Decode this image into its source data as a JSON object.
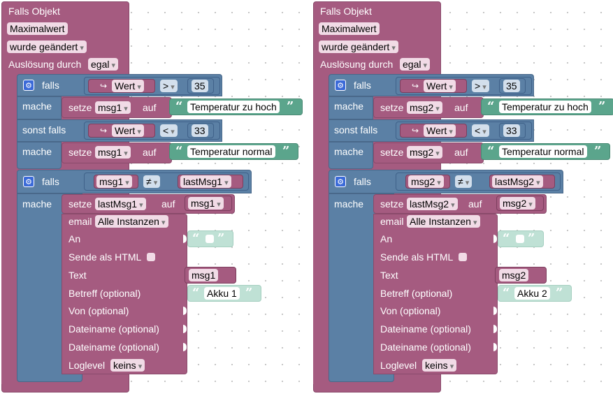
{
  "stacks": [
    {
      "trigger": {
        "title": "Falls Objekt",
        "object": "Maximalwert",
        "event": "wurde geändert",
        "trigger_label": "Auslösung durch",
        "trigger_value": "egal"
      },
      "if1": {
        "falls": "falls",
        "var": "Wert",
        "op": ">",
        "num": "35",
        "mache": "mache",
        "set": "setze",
        "target": "msg1",
        "auf": "auf",
        "text": "Temperatur zu hoch",
        "elseif": "sonst falls",
        "op2": "<",
        "num2": "33",
        "text2": "Temperatur normal"
      },
      "if2": {
        "falls": "falls",
        "left": "msg1",
        "op": "≠",
        "right": "lastMsg1",
        "mache": "mache",
        "set": "setze",
        "target": "lastMsg1",
        "auf": "auf",
        "value": "msg1"
      },
      "email": {
        "label": "email",
        "instances": "Alle Instanzen",
        "an": "An",
        "html": "Sende als HTML",
        "text": "Text",
        "text_value": "msg1",
        "subject": "Betreff (optional)",
        "subject_value": "Akku 1",
        "from": "Von (optional)",
        "file1": "Dateiname (optional)",
        "file2": "Dateiname (optional)",
        "loglevel": "Loglevel",
        "loglevel_value": "keins"
      }
    },
    {
      "trigger": {
        "title": "Falls Objekt",
        "object": "Maximalwert",
        "event": "wurde geändert",
        "trigger_label": "Auslösung durch",
        "trigger_value": "egal"
      },
      "if1": {
        "falls": "falls",
        "var": "Wert",
        "op": ">",
        "num": "35",
        "mache": "mache",
        "set": "setze",
        "target": "msg2",
        "auf": "auf",
        "text": "Temperatur zu hoch",
        "elseif": "sonst falls",
        "op2": "<",
        "num2": "33",
        "text2": "Temperatur normal"
      },
      "if2": {
        "falls": "falls",
        "left": "msg2",
        "op": "≠",
        "right": "lastMsg2",
        "mache": "mache",
        "set": "setze",
        "target": "lastMsg2",
        "auf": "auf",
        "value": "msg2"
      },
      "email": {
        "label": "email",
        "instances": "Alle Instanzen",
        "an": "An",
        "html": "Sende als HTML",
        "text": "Text",
        "text_value": "msg2",
        "subject": "Betreff (optional)",
        "subject_value": "Akku 2",
        "from": "Von (optional)",
        "file1": "Dateiname (optional)",
        "file2": "Dateiname (optional)",
        "loglevel": "Loglevel",
        "loglevel_value": "keins"
      }
    }
  ],
  "icons": {
    "gear": "gear-icon",
    "arrow": "return-arrow-icon",
    "quote_open": "open-quote-icon",
    "quote_close": "close-quote-icon"
  },
  "colors": {
    "event_block": "#a55b80",
    "logic_block": "#5b80a5",
    "text_block": "#5ba58c",
    "gear": "#3b6ad8"
  }
}
